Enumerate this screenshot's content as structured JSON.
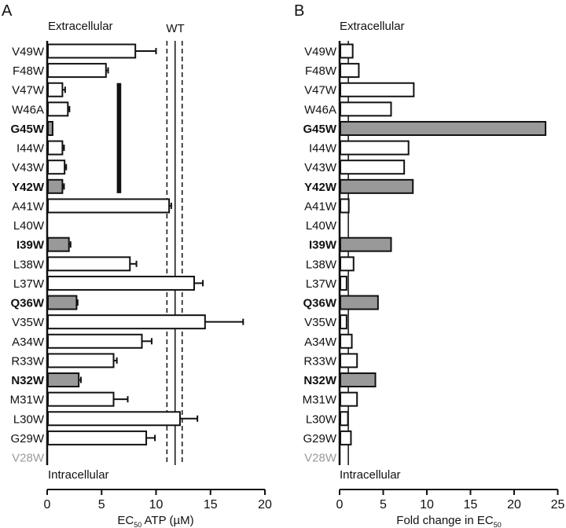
{
  "chart_data": [
    {
      "panel": "A",
      "type": "bar",
      "orientation": "horizontal",
      "title": "",
      "xlabel": "EC50 ATP (µM)",
      "xlabel_parts": {
        "pre": "EC",
        "sub": "50",
        "post": " ATP (µM)"
      },
      "ylabel": "",
      "xlim": [
        0,
        20
      ],
      "xticks": [
        0,
        5,
        10,
        15,
        20
      ],
      "top_annotation": "Extracellular",
      "bottom_annotation": "Intracellular",
      "reference": {
        "label": "WT",
        "value": 11.75,
        "lower": 11.0,
        "upper": 12.4
      },
      "bracket": {
        "from": "V47W",
        "to": "Y42W",
        "value": 6.6
      },
      "categories": [
        "V49W",
        "F48W",
        "V47W",
        "W46A",
        "G45W",
        "I44W",
        "V43W",
        "Y42W",
        "A41W",
        "L40W",
        "I39W",
        "L38W",
        "L37W",
        "Q36W",
        "V35W",
        "A34W",
        "R33W",
        "N32W",
        "M31W",
        "L30W",
        "G29W",
        "V28W"
      ],
      "values": [
        8.1,
        5.4,
        1.4,
        1.9,
        0.5,
        1.4,
        1.6,
        1.4,
        11.2,
        null,
        2.0,
        7.6,
        13.5,
        2.7,
        14.5,
        8.7,
        6.1,
        2.9,
        6.1,
        12.2,
        9.1,
        null
      ],
      "errors": [
        1.9,
        0.2,
        0.25,
        0.15,
        0.0,
        0.15,
        0.15,
        0.15,
        0.2,
        null,
        0.15,
        0.6,
        0.8,
        0.1,
        3.5,
        0.9,
        0.3,
        0.2,
        1.3,
        1.6,
        0.8,
        null
      ],
      "highlighted": [
        "G45W",
        "Y42W",
        "I39W",
        "Q36W",
        "N32W"
      ],
      "muted": [
        "V28W"
      ]
    },
    {
      "panel": "B",
      "type": "bar",
      "orientation": "horizontal",
      "title": "",
      "xlabel": "Fold change in EC50",
      "xlabel_parts": {
        "pre": "Fold change in EC",
        "sub": "50",
        "post": ""
      },
      "ylabel": "",
      "xlim": [
        0,
        25
      ],
      "xticks": [
        0,
        5,
        10,
        15,
        20,
        25
      ],
      "top_annotation": "Extracellular",
      "bottom_annotation": "Intracellular",
      "reference": {
        "label": "",
        "value": 1
      },
      "categories": [
        "V49W",
        "F48W",
        "V47W",
        "W46A",
        "G45W",
        "I44W",
        "V43W",
        "Y42W",
        "A41W",
        "L40W",
        "I39W",
        "L38W",
        "L37W",
        "Q36W",
        "V35W",
        "A34W",
        "R33W",
        "N32W",
        "M31W",
        "L30W",
        "G29W",
        "V28W"
      ],
      "values": [
        1.5,
        2.2,
        8.5,
        5.9,
        23.6,
        7.9,
        7.4,
        8.4,
        1.05,
        null,
        5.9,
        1.6,
        0.8,
        4.4,
        0.8,
        1.4,
        2.0,
        4.1,
        2.0,
        0.95,
        1.3,
        null
      ],
      "highlighted": [
        "G45W",
        "Y42W",
        "I39W",
        "Q36W",
        "N32W"
      ],
      "muted": [
        "V28W"
      ]
    }
  ],
  "colors": {
    "open_bar": "#ffffff",
    "highlight_bar": "#999999",
    "stroke": "#111111",
    "muted_label": "#9a9a9a"
  }
}
